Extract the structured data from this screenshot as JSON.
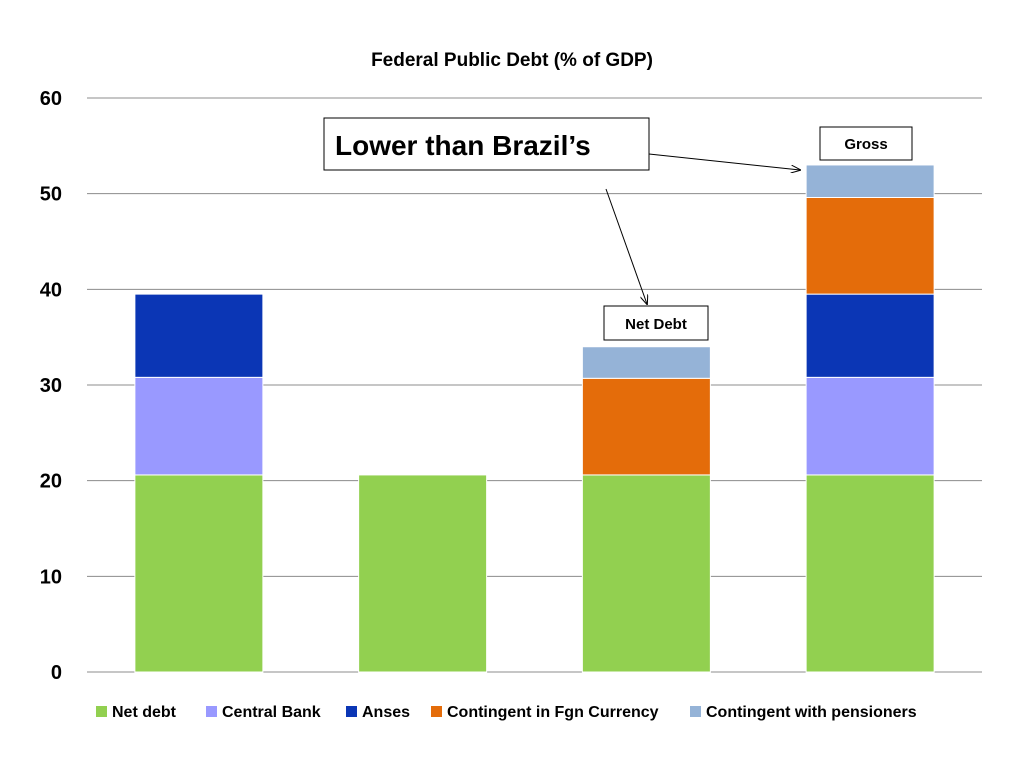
{
  "chart_data": {
    "type": "bar",
    "stacked": true,
    "title": "Federal Public Debt (% of GDP)",
    "xlabel": "",
    "ylabel": "",
    "ylim": [
      0,
      60
    ],
    "yticks": [
      0,
      10,
      20,
      30,
      40,
      50,
      60
    ],
    "grid": true,
    "legend_position": "bottom",
    "categories": [
      "",
      "",
      "",
      ""
    ],
    "series": [
      {
        "name": "Net debt",
        "color": "#92D050",
        "values": [
          20.6,
          20.6,
          20.6,
          20.6
        ]
      },
      {
        "name": "Central Bank",
        "color": "#9999FF",
        "values": [
          10.2,
          0,
          0,
          10.2
        ]
      },
      {
        "name": "Anses",
        "color": "#0B36B5",
        "values": [
          8.7,
          0,
          0,
          8.7
        ]
      },
      {
        "name": "Contingent in Fgn Currency",
        "color": "#E46C0A",
        "values": [
          0,
          0,
          10.1,
          10.1
        ]
      },
      {
        "name": "Contingent with pensioners",
        "color": "#95B3D7",
        "values": [
          0,
          0,
          3.3,
          3.4
        ]
      }
    ],
    "annotations": [
      {
        "text": "Lower than Brazil’s"
      },
      {
        "text": "Gross"
      },
      {
        "text": "Net Debt"
      }
    ]
  }
}
